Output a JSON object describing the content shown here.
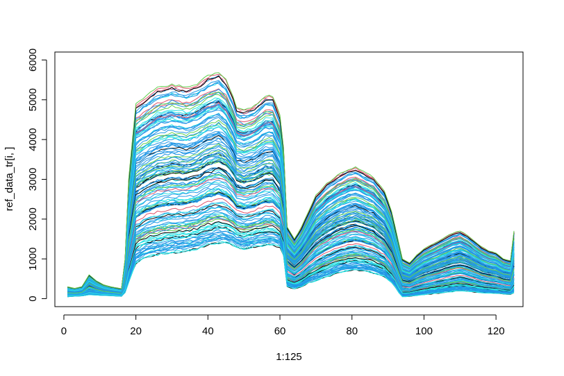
{
  "chart_data": {
    "type": "line",
    "title": "",
    "xlabel": "1:125",
    "ylabel": "ref_data_tr[i, ]",
    "xlim": [
      -2.5,
      127.5
    ],
    "ylim": [
      -200,
      6200
    ],
    "x_ticks": [
      0,
      20,
      40,
      60,
      80,
      100,
      120
    ],
    "y_ticks": [
      0,
      1000,
      2000,
      3000,
      4000,
      5000,
      6000
    ],
    "x_tick_labels": [
      "0",
      "20",
      "40",
      "60",
      "80",
      "100",
      "120"
    ],
    "y_tick_labels": [
      "0",
      "1000",
      "2000",
      "3000",
      "4000",
      "5000",
      "6000"
    ],
    "n_points": 125,
    "n_series": 140,
    "series_colors": [
      "#000000",
      "#df536b",
      "#61d04f",
      "#2297e6",
      "#28e2e5",
      "#cd0bbc",
      "#f5c710",
      "#9e9e9e"
    ],
    "color_weights": [
      6,
      8,
      6,
      55,
      25
    ],
    "grid": false,
    "legend": "none",
    "profile": {
      "x": [
        1,
        3,
        5,
        7,
        9,
        11,
        13,
        16,
        17,
        18,
        20,
        23,
        26,
        30,
        34,
        37,
        40,
        43,
        45,
        47,
        48,
        50,
        53,
        56,
        58,
        60,
        61,
        62,
        64,
        66,
        68,
        70,
        73,
        76,
        79,
        81,
        83,
        86,
        89,
        91,
        92,
        93,
        94,
        96,
        98,
        100,
        102,
        104,
        106,
        108,
        110,
        112,
        114,
        116,
        118,
        120,
        122,
        124,
        125
      ],
      "upper_envelope": [
        300,
        260,
        300,
        600,
        450,
        350,
        300,
        250,
        1000,
        3000,
        4900,
        5100,
        5300,
        5400,
        5300,
        5400,
        5600,
        5700,
        5500,
        5100,
        4800,
        4750,
        4850,
        5100,
        5100,
        4600,
        3800,
        1800,
        1500,
        1800,
        2200,
        2600,
        2900,
        3100,
        3250,
        3300,
        3200,
        3050,
        2700,
        2200,
        1800,
        1400,
        1000,
        900,
        1100,
        1250,
        1350,
        1450,
        1550,
        1650,
        1700,
        1600,
        1450,
        1300,
        1200,
        1150,
        1000,
        950,
        1700
      ],
      "lower_envelope": [
        50,
        60,
        70,
        100,
        90,
        80,
        75,
        60,
        150,
        400,
        900,
        1050,
        1100,
        1150,
        1200,
        1250,
        1350,
        1400,
        1400,
        1350,
        1300,
        1250,
        1300,
        1350,
        1350,
        1300,
        1100,
        300,
        250,
        300,
        400,
        450,
        550,
        650,
        700,
        720,
        700,
        650,
        550,
        400,
        300,
        150,
        50,
        60,
        80,
        100,
        120,
        140,
        160,
        180,
        200,
        190,
        170,
        150,
        140,
        130,
        120,
        110,
        150
      ]
    }
  }
}
